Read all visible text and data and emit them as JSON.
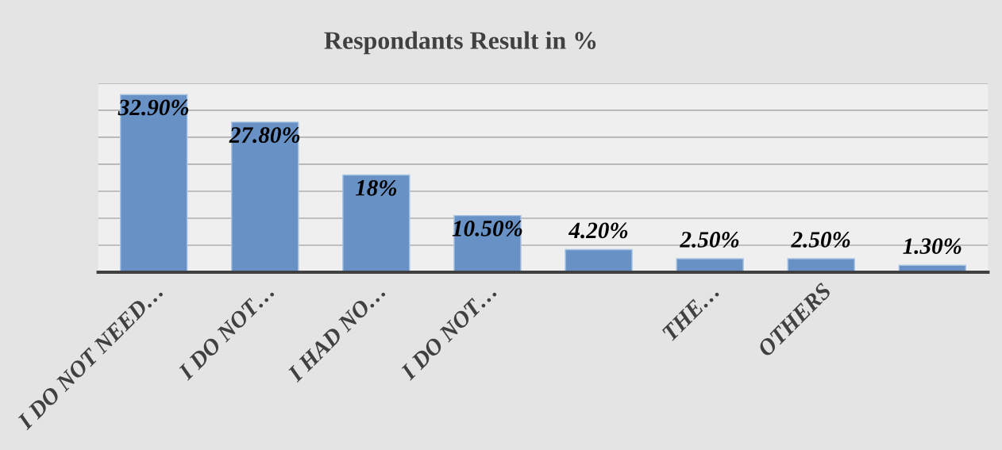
{
  "chart_data": {
    "type": "bar",
    "title": "Respondants Result in %",
    "categories": [
      "I DO NOT NEED…",
      "I DO NOT…",
      "I HAD NO…",
      "I DO NOT…",
      null,
      "THE…",
      "OTHERS",
      null
    ],
    "values": [
      32.9,
      27.8,
      18,
      10.5,
      4.2,
      2.5,
      2.5,
      1.3
    ],
    "value_labels": [
      "32.90%",
      "27.80%",
      "18%",
      "10.50%",
      "4.20%",
      "2.50%",
      "2.50%",
      "1.30%"
    ],
    "color": "#6892c6",
    "ylim": [
      0,
      35
    ],
    "yticks": [
      {
        "value": 0,
        "label": null
      },
      {
        "value": 5,
        "label": null
      },
      {
        "value": 10,
        "label": null
      },
      {
        "value": 15,
        "label": null
      },
      {
        "value": 20,
        "label": null
      },
      {
        "value": 25,
        "label": null
      },
      {
        "value": 30,
        "label": null
      },
      {
        "value": 35,
        "label": null
      }
    ],
    "tick_labels": "x",
    "grid": "y"
  }
}
